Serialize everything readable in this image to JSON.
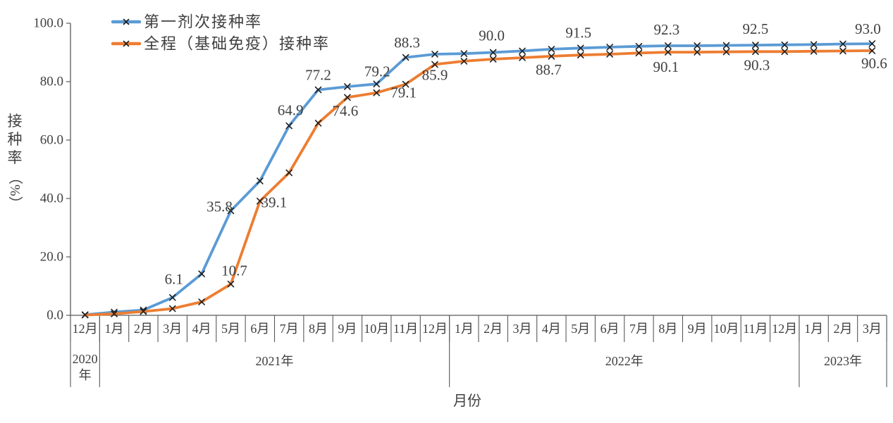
{
  "page": {
    "background": "#ffffff"
  },
  "chart_data": {
    "type": "line",
    "title": "",
    "xlabel": "月份",
    "ylabel": "接种率（%）",
    "ylim": [
      0,
      100
    ],
    "y_tick_values": [
      0,
      20,
      40,
      60,
      80,
      100
    ],
    "y_tick_labels": [
      "0.0",
      "20.0",
      "40.0",
      "60.0",
      "80.0",
      "100.0"
    ],
    "grid": false,
    "legend": {
      "position": "top-left-inside",
      "items": [
        "第一剂次接种率",
        "全程（基础免疫）接种率"
      ]
    },
    "categories": [
      "12月",
      "1月",
      "2月",
      "3月",
      "4月",
      "5月",
      "6月",
      "7月",
      "8月",
      "9月",
      "10月",
      "11月",
      "12月",
      "1月",
      "2月",
      "3月",
      "4月",
      "5月",
      "6月",
      "7月",
      "8月",
      "9月",
      "10月",
      "11月",
      "12月",
      "1月",
      "2月",
      "3月"
    ],
    "year_groups": [
      {
        "label": "2020年",
        "lines": [
          "2020",
          "年"
        ],
        "months": 1
      },
      {
        "label": "2021年",
        "lines": [
          "2021年"
        ],
        "months": 12
      },
      {
        "label": "2022年",
        "lines": [
          "2022年"
        ],
        "months": 12
      },
      {
        "label": "2023年",
        "lines": [
          "2023年"
        ],
        "months": 3
      }
    ],
    "series": [
      {
        "name": "第一剂次接种率",
        "color": "#5B9BD5",
        "marker": "x",
        "values": [
          0.2,
          1.1,
          1.8,
          6.1,
          14.2,
          35.8,
          46.0,
          64.9,
          77.2,
          78.3,
          79.2,
          88.3,
          89.4,
          89.6,
          90.0,
          90.5,
          91.1,
          91.5,
          91.8,
          92.1,
          92.3,
          92.3,
          92.4,
          92.5,
          92.6,
          92.7,
          92.9,
          93.0
        ],
        "point_labels": [
          {
            "index": 3,
            "text": "6.1",
            "dx": 2,
            "dy": -26
          },
          {
            "index": 5,
            "text": "35.8",
            "dx": -16,
            "dy": -6
          },
          {
            "index": 7,
            "text": "64.9",
            "dx": 2,
            "dy": -22
          },
          {
            "index": 8,
            "text": "77.2",
            "dx": 0,
            "dy": -21
          },
          {
            "index": 10,
            "text": "79.2",
            "dx": 1,
            "dy": -18
          },
          {
            "index": 11,
            "text": "88.3",
            "dx": 2,
            "dy": -21
          },
          {
            "index": 14,
            "text": "90.0",
            "dx": -2,
            "dy": -24
          },
          {
            "index": 17,
            "text": "91.5",
            "dx": -3,
            "dy": -22
          },
          {
            "index": 20,
            "text": "92.3",
            "dx": -2,
            "dy": -23
          },
          {
            "index": 23,
            "text": "92.5",
            "dx": 0,
            "dy": -23
          },
          {
            "index": 27,
            "text": "93.0",
            "dx": -6,
            "dy": -21
          }
        ]
      },
      {
        "name": "全程（基础免疫）接种率",
        "color": "#ED7D31",
        "marker": "x",
        "values": [
          0.1,
          0.5,
          1.3,
          2.3,
          4.6,
          10.7,
          39.1,
          48.8,
          65.8,
          74.6,
          76.2,
          79.1,
          85.9,
          87.0,
          87.7,
          88.2,
          88.7,
          89.1,
          89.4,
          89.8,
          90.1,
          90.1,
          90.2,
          90.3,
          90.3,
          90.4,
          90.5,
          90.6
        ],
        "point_labels": [
          {
            "index": 5,
            "text": "10.7",
            "dx": 5,
            "dy": -19
          },
          {
            "index": 6,
            "text": "39.1",
            "dx": 20,
            "dy": 2
          },
          {
            "index": 9,
            "text": "74.6",
            "dx": -3,
            "dy": 19
          },
          {
            "index": 11,
            "text": "79.1",
            "dx": -3,
            "dy": 12
          },
          {
            "index": 12,
            "text": "85.9",
            "dx": 0,
            "dy": 15
          },
          {
            "index": 16,
            "text": "88.7",
            "dx": -4,
            "dy": 19
          },
          {
            "index": 20,
            "text": "90.1",
            "dx": -3,
            "dy": 21
          },
          {
            "index": 23,
            "text": "90.3",
            "dx": 2,
            "dy": 19
          },
          {
            "index": 27,
            "text": "90.6",
            "dx": 3,
            "dy": 18
          }
        ]
      }
    ],
    "axis_color": "#595959",
    "text_color": "#404040",
    "marker_color": "#1f1f1f"
  }
}
